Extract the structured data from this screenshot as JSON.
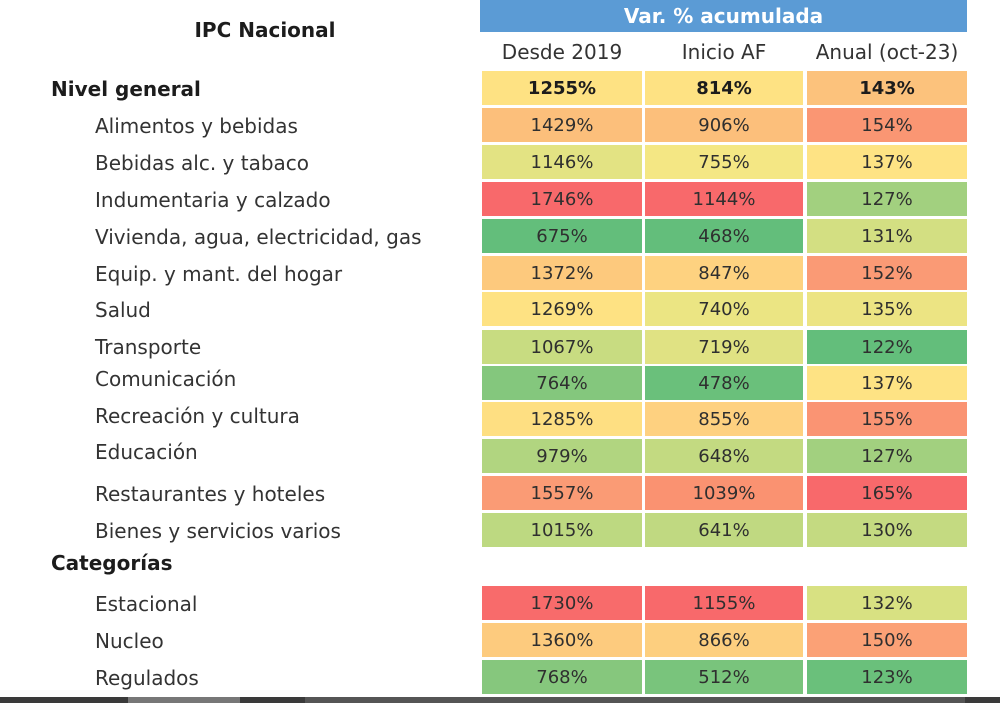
{
  "title": "IPC Nacional",
  "group_header": "Var. % acumulada",
  "columns": [
    "Desde 2019",
    "Inicio AF",
    "Anual (oct-23)"
  ],
  "colors": {
    "red": "#f8696b",
    "orange_red": "#fa9a75",
    "orange": "#fcbf7b",
    "light_orange": "#fdd17f",
    "yellow": "#ffe484",
    "yellow_green": "#d8e182",
    "light_green": "#b1d580",
    "green": "#8bca7e",
    "dark_green": "#63be7b",
    "header_blue": "#5b9bd5"
  },
  "rows": [
    {
      "label": "Nivel general",
      "bold": true,
      "values": [
        "1255%",
        "814%",
        "143%"
      ],
      "colors": [
        "#fee283",
        "#fee283",
        "#fcc27c"
      ]
    },
    {
      "label": "Alimentos y bebidas",
      "bold": false,
      "values": [
        "1429%",
        "906%",
        "154%"
      ],
      "colors": [
        "#fcbf7b",
        "#fcbf7b",
        "#fa9673"
      ]
    },
    {
      "label": "Bebidas alc. y tabaco",
      "bold": false,
      "values": [
        "1146%",
        "755%",
        "137%"
      ],
      "colors": [
        "#e3e383",
        "#f4e784",
        "#fee384"
      ]
    },
    {
      "label": "Indumentaria y calzado",
      "bold": false,
      "values": [
        "1746%",
        "1144%",
        "127%"
      ],
      "colors": [
        "#f8696b",
        "#f8696b",
        "#a2d07f"
      ]
    },
    {
      "label": "Vivienda, agua, electricidad, gas",
      "bold": false,
      "values": [
        "675%",
        "468%",
        "131%"
      ],
      "colors": [
        "#63be7b",
        "#63be7b",
        "#d3df82"
      ]
    },
    {
      "label": "Equip. y mant. del hogar",
      "bold": false,
      "values": [
        "1372%",
        "847%",
        "152%"
      ],
      "colors": [
        "#fdc97d",
        "#fed280",
        "#fa9a75"
      ]
    },
    {
      "label": "Salud",
      "bold": false,
      "values": [
        "1269%",
        "740%",
        "135%"
      ],
      "colors": [
        "#fee283",
        "#ebe583",
        "#ece483"
      ]
    },
    {
      "label": "Transporte",
      "bold": false,
      "values": [
        "1067%",
        "719%",
        "122%"
      ],
      "colors": [
        "#c8dc81",
        "#e0e283",
        "#63be7b"
      ]
    },
    {
      "label": "Comunicación",
      "bold": false,
      "values": [
        "764%",
        "478%",
        "137%"
      ],
      "colors": [
        "#84c77d",
        "#6ac07b",
        "#fee384"
      ]
    },
    {
      "label": "Recreación y cultura",
      "bold": false,
      "values": [
        "1285%",
        "855%",
        "155%"
      ],
      "colors": [
        "#fedf82",
        "#fed180",
        "#fa9473"
      ]
    },
    {
      "label": "Educación",
      "bold": false,
      "values": [
        "979%",
        "648%",
        "127%"
      ],
      "colors": [
        "#b1d580",
        "#c3da81",
        "#a2d07f"
      ]
    },
    {
      "label": "Restaurantes y hoteles",
      "bold": false,
      "values": [
        "1557%",
        "1039%",
        "165%"
      ],
      "colors": [
        "#fa9b75",
        "#fa9271",
        "#f8696b"
      ]
    },
    {
      "label": "Bienes y servicios varios",
      "bold": false,
      "values": [
        "1015%",
        "641%",
        "130%"
      ],
      "colors": [
        "#bdd981",
        "#c0d981",
        "#c4da81"
      ]
    }
  ],
  "section_label": "Categorías",
  "category_rows": [
    {
      "label": "Estacional",
      "values": [
        "1730%",
        "1155%",
        "132%"
      ],
      "colors": [
        "#f86b6b",
        "#f8696b",
        "#d8e182"
      ]
    },
    {
      "label": "Nucleo",
      "values": [
        "1360%",
        "866%",
        "150%"
      ],
      "colors": [
        "#fdcb7e",
        "#fdcf7f",
        "#fba176"
      ]
    },
    {
      "label": "Regulados",
      "values": [
        "768%",
        "512%",
        "123%"
      ],
      "colors": [
        "#86c77d",
        "#79c47c",
        "#6ac07b"
      ]
    }
  ]
}
